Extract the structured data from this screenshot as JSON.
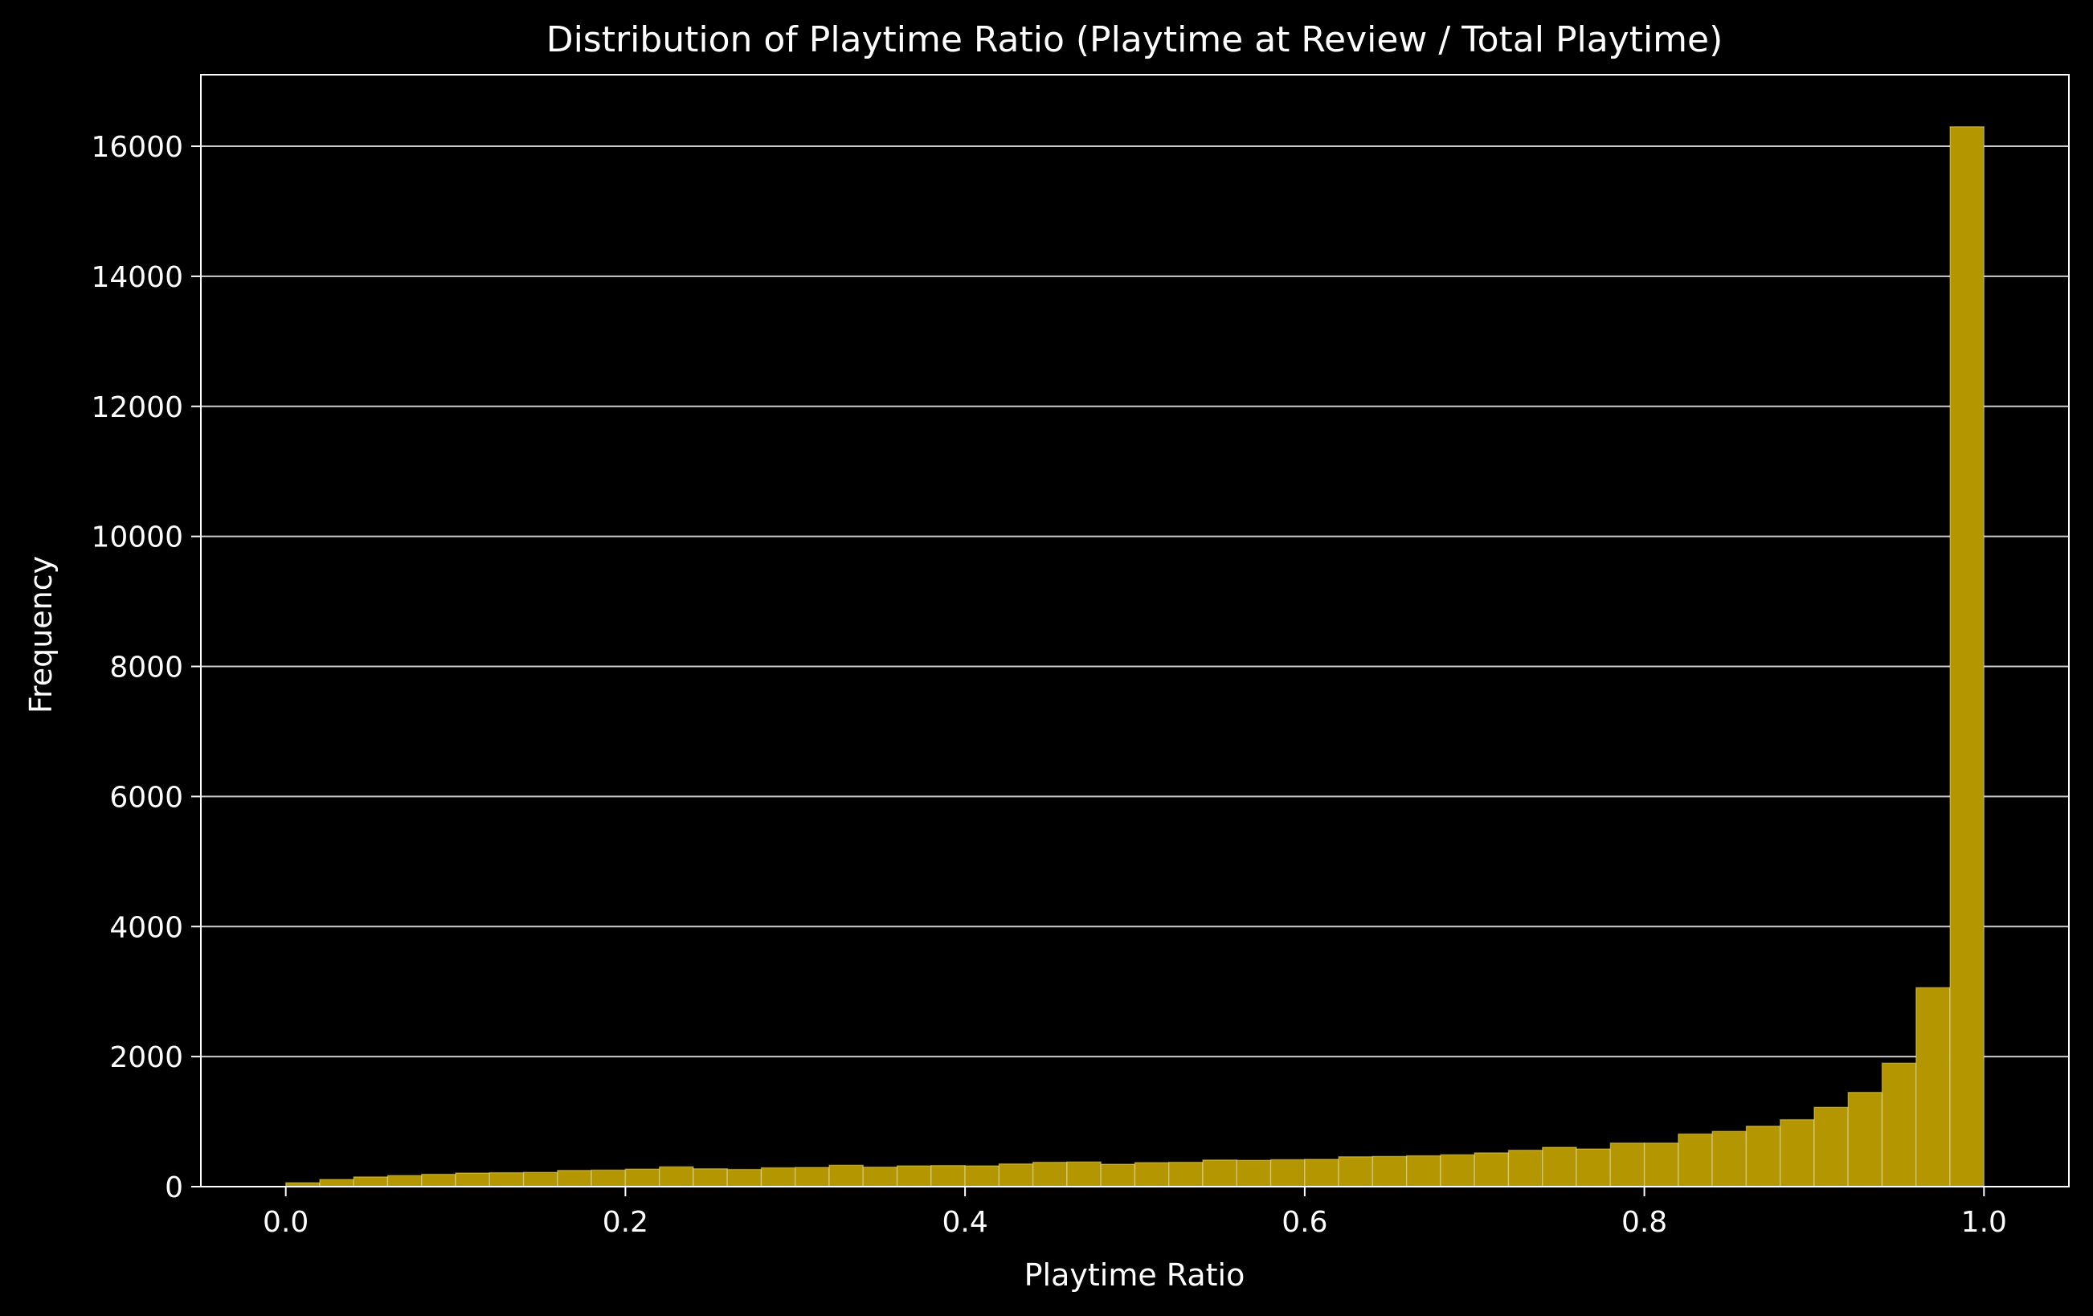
{
  "chart_data": {
    "type": "bar",
    "title": "Distribution of Playtime Ratio (Playtime at Review / Total Playtime)",
    "xlabel": "Playtime Ratio",
    "ylabel": "Frequency",
    "xlim": [
      -0.05,
      1.05
    ],
    "ylim": [
      0,
      17100
    ],
    "xticks": [
      0.0,
      0.2,
      0.4,
      0.6,
      0.8,
      1.0
    ],
    "xtick_labels": [
      "0.0",
      "0.2",
      "0.4",
      "0.6",
      "0.8",
      "1.0"
    ],
    "yticks": [
      0,
      2000,
      4000,
      6000,
      8000,
      10000,
      12000,
      14000,
      16000
    ],
    "ytick_labels": [
      "0",
      "2000",
      "4000",
      "6000",
      "8000",
      "10000",
      "12000",
      "14000",
      "16000"
    ],
    "grid": "horizontal",
    "bin_start": 0.0,
    "bin_width": 0.02,
    "bar_color": "#b39600",
    "bar_edge_color": "#ffffff",
    "background_color": "#000000",
    "values": [
      60,
      110,
      150,
      170,
      190,
      210,
      215,
      220,
      250,
      255,
      270,
      305,
      275,
      265,
      290,
      295,
      330,
      300,
      320,
      325,
      320,
      350,
      375,
      380,
      345,
      370,
      375,
      410,
      405,
      415,
      420,
      460,
      465,
      475,
      490,
      520,
      560,
      605,
      580,
      670,
      670,
      810,
      850,
      930,
      1030,
      1220,
      1450,
      1900,
      3060,
      16300
    ]
  }
}
